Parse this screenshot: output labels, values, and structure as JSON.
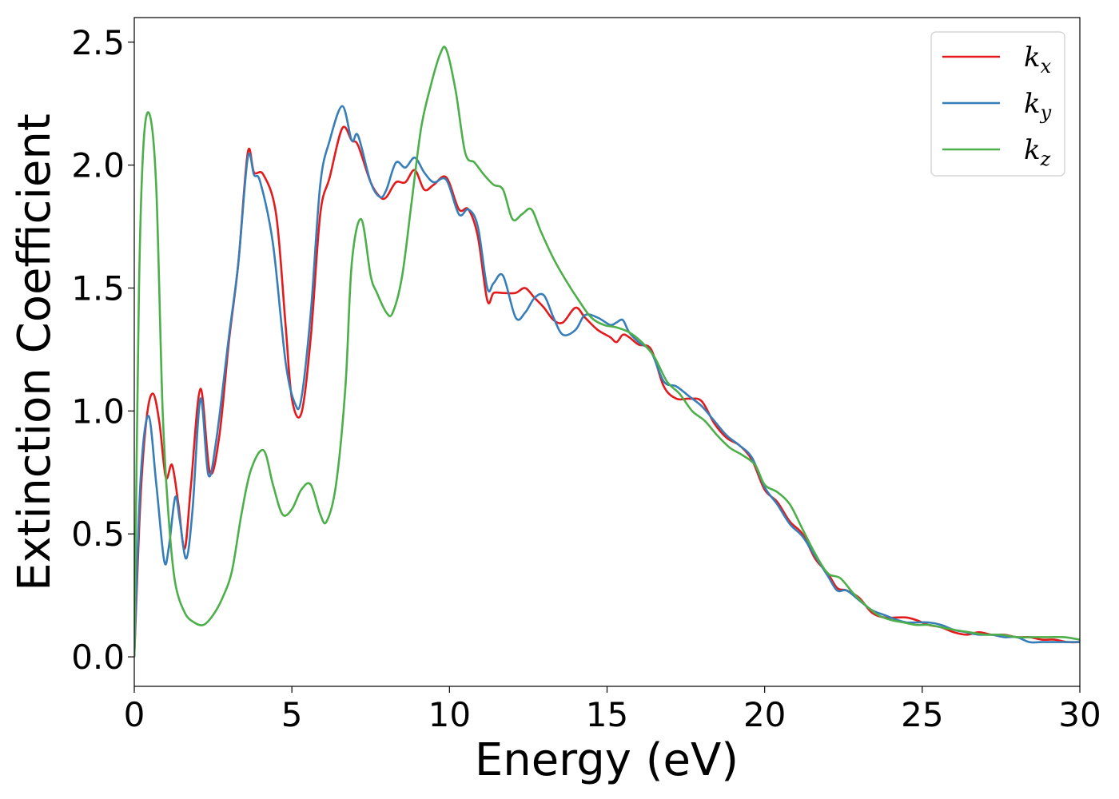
{
  "chart_data": {
    "type": "line",
    "xlabel": "Energy (eV)",
    "ylabel": "Extinction Coefficient",
    "xlim": [
      0,
      30
    ],
    "ylim": [
      -0.12,
      2.6
    ],
    "xticks": [
      0,
      5,
      10,
      15,
      20,
      25,
      30
    ],
    "xtick_labels": [
      "0",
      "5",
      "10",
      "15",
      "20",
      "25",
      "30"
    ],
    "yticks": [
      0.0,
      0.5,
      1.0,
      1.5,
      2.0,
      2.5
    ],
    "ytick_labels": [
      "0.0",
      "0.5",
      "1.0",
      "1.5",
      "2.0",
      "2.5"
    ],
    "grid": false,
    "legend_position": "top-right",
    "series": [
      {
        "name": "k",
        "subscript": "x",
        "color": "#e41a1c",
        "x": [
          0,
          0.2,
          0.4,
          0.6,
          0.8,
          1.0,
          1.2,
          1.4,
          1.6,
          1.8,
          2.1,
          2.4,
          2.7,
          3.0,
          3.3,
          3.6,
          3.8,
          4.1,
          4.5,
          4.8,
          5.0,
          5.3,
          5.6,
          5.9,
          6.2,
          6.6,
          6.9,
          7.1,
          7.5,
          7.8,
          8.0,
          8.3,
          8.6,
          8.9,
          9.2,
          9.5,
          9.9,
          10.3,
          10.6,
          10.9,
          11.2,
          11.4,
          11.7,
          12.1,
          12.4,
          12.7,
          13.0,
          13.3,
          13.6,
          14.0,
          14.3,
          14.7,
          15.1,
          15.3,
          15.5,
          15.7,
          16.0,
          16.4,
          16.8,
          17.2,
          17.6,
          18.0,
          18.4,
          18.8,
          19.2,
          19.6,
          20.0,
          20.4,
          20.8,
          21.2,
          21.6,
          22.0,
          22.3,
          22.6,
          23.0,
          23.4,
          23.8,
          24.2,
          24.5,
          24.8,
          25.2,
          25.6,
          26.0,
          26.4,
          26.8,
          27.2,
          27.6,
          28.0,
          28.4,
          28.8,
          29.2,
          29.6,
          30.0
        ],
        "y": [
          0.0,
          0.65,
          0.98,
          1.07,
          0.95,
          0.73,
          0.78,
          0.62,
          0.44,
          0.7,
          1.09,
          0.75,
          0.9,
          1.28,
          1.6,
          2.05,
          1.97,
          1.96,
          1.8,
          1.35,
          1.05,
          0.99,
          1.3,
          1.8,
          1.95,
          2.15,
          2.1,
          2.08,
          1.93,
          1.87,
          1.87,
          1.93,
          1.93,
          1.98,
          1.9,
          1.92,
          1.95,
          1.82,
          1.82,
          1.71,
          1.45,
          1.48,
          1.48,
          1.48,
          1.5,
          1.46,
          1.42,
          1.37,
          1.36,
          1.42,
          1.38,
          1.33,
          1.3,
          1.28,
          1.31,
          1.3,
          1.27,
          1.25,
          1.1,
          1.05,
          1.05,
          1.04,
          0.95,
          0.89,
          0.86,
          0.8,
          0.68,
          0.63,
          0.55,
          0.5,
          0.4,
          0.34,
          0.28,
          0.27,
          0.24,
          0.18,
          0.16,
          0.16,
          0.16,
          0.15,
          0.13,
          0.12,
          0.1,
          0.09,
          0.1,
          0.09,
          0.09,
          0.08,
          0.08,
          0.07,
          0.07,
          0.06,
          0.06
        ]
      },
      {
        "name": "k",
        "subscript": "y",
        "color": "#377eb8",
        "x": [
          0,
          0.2,
          0.45,
          0.7,
          0.95,
          1.1,
          1.3,
          1.45,
          1.65,
          1.85,
          2.1,
          2.35,
          2.6,
          3.0,
          3.3,
          3.6,
          3.8,
          4.0,
          4.4,
          4.8,
          5.1,
          5.3,
          5.6,
          5.9,
          6.2,
          6.6,
          6.9,
          7.1,
          7.5,
          7.8,
          8.0,
          8.3,
          8.6,
          8.9,
          9.2,
          9.5,
          9.9,
          10.3,
          10.6,
          10.9,
          11.2,
          11.4,
          11.7,
          12.1,
          12.4,
          12.7,
          13.0,
          13.3,
          13.6,
          14.0,
          14.3,
          14.7,
          15.1,
          15.3,
          15.5,
          15.7,
          16.0,
          16.4,
          16.8,
          17.2,
          17.6,
          18.0,
          18.4,
          18.8,
          19.2,
          19.6,
          20.0,
          20.4,
          20.8,
          21.2,
          21.6,
          22.0,
          22.3,
          22.6,
          23.0,
          23.4,
          23.8,
          24.2,
          24.5,
          24.8,
          25.2,
          25.6,
          26.0,
          26.4,
          26.8,
          27.2,
          27.6,
          28.0,
          28.4,
          28.8,
          29.2,
          29.6,
          30.0
        ],
        "y": [
          0.0,
          0.72,
          0.98,
          0.7,
          0.39,
          0.45,
          0.65,
          0.55,
          0.4,
          0.6,
          1.05,
          0.74,
          0.88,
          1.3,
          1.6,
          2.03,
          1.96,
          1.93,
          1.68,
          1.2,
          1.03,
          1.05,
          1.4,
          1.92,
          2.1,
          2.24,
          2.1,
          2.12,
          1.93,
          1.87,
          1.9,
          2.01,
          1.99,
          2.03,
          1.97,
          1.93,
          1.94,
          1.8,
          1.82,
          1.75,
          1.5,
          1.52,
          1.55,
          1.38,
          1.4,
          1.46,
          1.47,
          1.38,
          1.31,
          1.33,
          1.39,
          1.38,
          1.35,
          1.36,
          1.37,
          1.32,
          1.28,
          1.24,
          1.12,
          1.1,
          1.06,
          1.02,
          0.96,
          0.9,
          0.86,
          0.81,
          0.69,
          0.62,
          0.54,
          0.49,
          0.41,
          0.33,
          0.27,
          0.27,
          0.23,
          0.19,
          0.17,
          0.15,
          0.14,
          0.14,
          0.14,
          0.13,
          0.11,
          0.1,
          0.09,
          0.09,
          0.08,
          0.08,
          0.06,
          0.06,
          0.06,
          0.06,
          0.06
        ]
      },
      {
        "name": "k",
        "subscript": "z",
        "color": "#4daf4a",
        "x": [
          0,
          0.15,
          0.3,
          0.5,
          0.7,
          0.9,
          1.1,
          1.3,
          1.6,
          1.9,
          2.2,
          2.5,
          2.8,
          3.1,
          3.4,
          3.7,
          4.1,
          4.4,
          4.7,
          5.0,
          5.3,
          5.6,
          5.9,
          6.1,
          6.4,
          6.7,
          6.9,
          7.2,
          7.5,
          7.7,
          8.0,
          8.2,
          8.5,
          8.8,
          9.1,
          9.4,
          9.7,
          9.9,
          10.2,
          10.5,
          10.8,
          11.1,
          11.4,
          11.7,
          12.0,
          12.3,
          12.6,
          12.9,
          13.3,
          13.7,
          14.1,
          14.5,
          14.9,
          15.3,
          15.7,
          16.1,
          16.5,
          16.9,
          17.3,
          17.7,
          18.1,
          18.5,
          18.9,
          19.3,
          19.7,
          20.0,
          20.4,
          20.8,
          21.2,
          21.6,
          22.0,
          22.4,
          22.8,
          23.2,
          23.6,
          24.0,
          24.4,
          24.8,
          25.2,
          25.6,
          26.0,
          26.5,
          27.0,
          27.5,
          28.0,
          28.5,
          29.0,
          29.5,
          30.0
        ],
        "y": [
          0.0,
          1.5,
          2.1,
          2.2,
          1.9,
          1.0,
          0.55,
          0.3,
          0.18,
          0.14,
          0.13,
          0.17,
          0.24,
          0.35,
          0.58,
          0.76,
          0.84,
          0.7,
          0.58,
          0.6,
          0.68,
          0.7,
          0.58,
          0.55,
          0.7,
          1.1,
          1.6,
          1.78,
          1.55,
          1.48,
          1.4,
          1.4,
          1.55,
          1.85,
          2.15,
          2.32,
          2.45,
          2.47,
          2.3,
          2.05,
          2.01,
          1.96,
          1.92,
          1.9,
          1.78,
          1.8,
          1.82,
          1.73,
          1.62,
          1.53,
          1.45,
          1.38,
          1.35,
          1.34,
          1.32,
          1.28,
          1.22,
          1.12,
          1.07,
          1.0,
          0.96,
          0.9,
          0.85,
          0.82,
          0.78,
          0.7,
          0.67,
          0.62,
          0.52,
          0.42,
          0.34,
          0.32,
          0.26,
          0.21,
          0.17,
          0.15,
          0.14,
          0.13,
          0.13,
          0.12,
          0.11,
          0.1,
          0.09,
          0.09,
          0.08,
          0.08,
          0.08,
          0.08,
          0.07
        ]
      }
    ]
  }
}
